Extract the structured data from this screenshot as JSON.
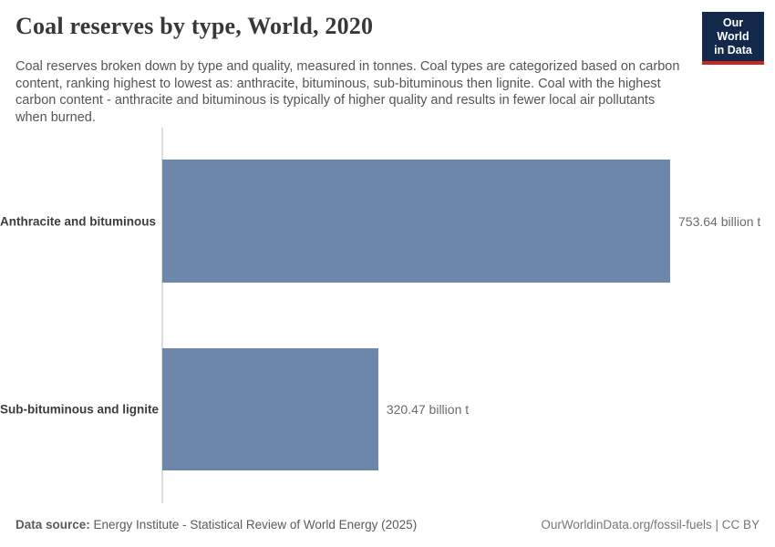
{
  "header": {
    "title": "Coal reserves by type, World, 2020",
    "subtitle": "Coal reserves broken down by type and quality, measured in tonnes. Coal types are categorized based on carbon content, ranking highest to lowest as: anthracite, bituminous, sub-bituminous then lignite. Coal with the highest carbon content - anthracite and bituminous is typically of higher quality and results in fewer local air pollutants when burned.",
    "logo": {
      "line1": "Our World",
      "line2": "in Data",
      "bg_color": "#12294b",
      "accent_color": "#c7281f"
    }
  },
  "chart_data": {
    "type": "bar",
    "orientation": "horizontal",
    "title": "Coal reserves by type, World, 2020",
    "categories": [
      "Anthracite and bituminous",
      "Sub-bituminous and lignite"
    ],
    "values": [
      753.64,
      320.47
    ],
    "value_labels": [
      "753.64 billion t",
      "320.47 billion t"
    ],
    "unit": "billion t",
    "xlim": [
      0,
      753.64
    ],
    "bar_color": "#6d87ab",
    "axis_color": "#dedede",
    "grid": false,
    "legend": "none"
  },
  "footer": {
    "datasource_label": "Data source:",
    "datasource_value": " Energy Institute - Statistical Review of World Energy (2025)",
    "attribution": "OurWorldinData.org/fossil-fuels | CC BY"
  }
}
